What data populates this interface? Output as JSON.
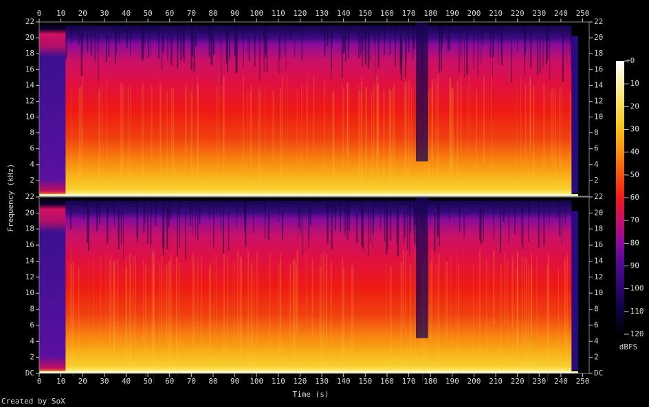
{
  "chart_data": {
    "type": "spectrogram",
    "xlabel": "Time (s)",
    "ylabel": "Frequency (kHz)",
    "xlim": [
      0,
      253
    ],
    "xticks": [
      0,
      10,
      20,
      30,
      40,
      50,
      60,
      70,
      80,
      90,
      100,
      110,
      120,
      130,
      140,
      150,
      160,
      170,
      180,
      190,
      200,
      210,
      220,
      230,
      240,
      250
    ],
    "channels": [
      {
        "ylim": [
          0,
          22
        ],
        "yticks": [
          2,
          4,
          6,
          8,
          10,
          12,
          14,
          16,
          18,
          20,
          22
        ]
      },
      {
        "ylim": [
          0,
          22
        ],
        "yticks": [
          {
            "value": 0,
            "label": "DC"
          },
          2,
          4,
          6,
          8,
          10,
          12,
          14,
          16,
          18,
          20,
          22
        ]
      }
    ],
    "colorbar": {
      "label": "dBFS",
      "zlim": [
        -120,
        0
      ],
      "ticks": [
        {
          "value": 0,
          "label": "+0"
        },
        -10,
        -20,
        -30,
        -40,
        -50,
        -60,
        -70,
        -80,
        -90,
        -100,
        -110,
        -120
      ]
    },
    "credit": "Created by SoX"
  }
}
